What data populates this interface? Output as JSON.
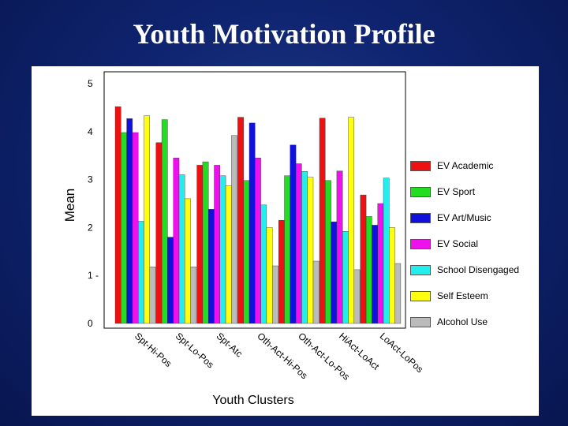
{
  "slide": {
    "title": "Youth Motivation Profile"
  },
  "chart_data": {
    "type": "bar",
    "title": "Youth Motivation Profile",
    "xlabel": "Youth Clusters",
    "ylabel": "Mean",
    "ylim": [
      0,
      5
    ],
    "yticks": [
      {
        "value": 0,
        "label": "0"
      },
      {
        "value": 1,
        "label": "1 -"
      },
      {
        "value": 2,
        "label": "2"
      },
      {
        "value": 3,
        "label": "3"
      },
      {
        "value": 4,
        "label": "4"
      },
      {
        "value": 5,
        "label": "5"
      }
    ],
    "grid": false,
    "legend_position": "right",
    "categories": [
      "Spt-Hi-Pos",
      "Spt-Lo-Pos",
      "Spt-Atc",
      "Oth-Act-Hi-Pos",
      "Oth-Act-Lo-Pos",
      "HiAct-LoAct",
      "LoAct-LoPos"
    ],
    "series": [
      {
        "name": "EV Academic",
        "color": "#ee1111",
        "values": [
          4.52,
          3.77,
          3.3,
          4.3,
          2.15,
          4.28,
          2.68
        ]
      },
      {
        "name": "EV Sport",
        "color": "#22dd22",
        "values": [
          3.98,
          4.25,
          3.37,
          2.98,
          3.08,
          2.98,
          2.23
        ]
      },
      {
        "name": "EV Art/Music",
        "color": "#1111dd",
        "values": [
          4.27,
          1.8,
          2.38,
          4.18,
          3.72,
          2.12,
          2.05
        ]
      },
      {
        "name": "EV Social",
        "color": "#ee11ee",
        "values": [
          3.98,
          3.45,
          3.3,
          3.45,
          3.33,
          3.18,
          2.5
        ]
      },
      {
        "name": "School Disengaged",
        "color": "#22eeee",
        "values": [
          2.13,
          3.1,
          3.08,
          2.47,
          3.17,
          1.92,
          3.03
        ]
      },
      {
        "name": "Self Esteem",
        "color": "#ffff11",
        "values": [
          4.33,
          2.6,
          2.87,
          2.0,
          3.05,
          4.3,
          2.0
        ]
      },
      {
        "name": "Alcohol Use",
        "color": "#bbbbbb",
        "values": [
          1.18,
          1.18,
          3.92,
          1.2,
          1.3,
          1.12,
          1.25
        ]
      }
    ]
  }
}
